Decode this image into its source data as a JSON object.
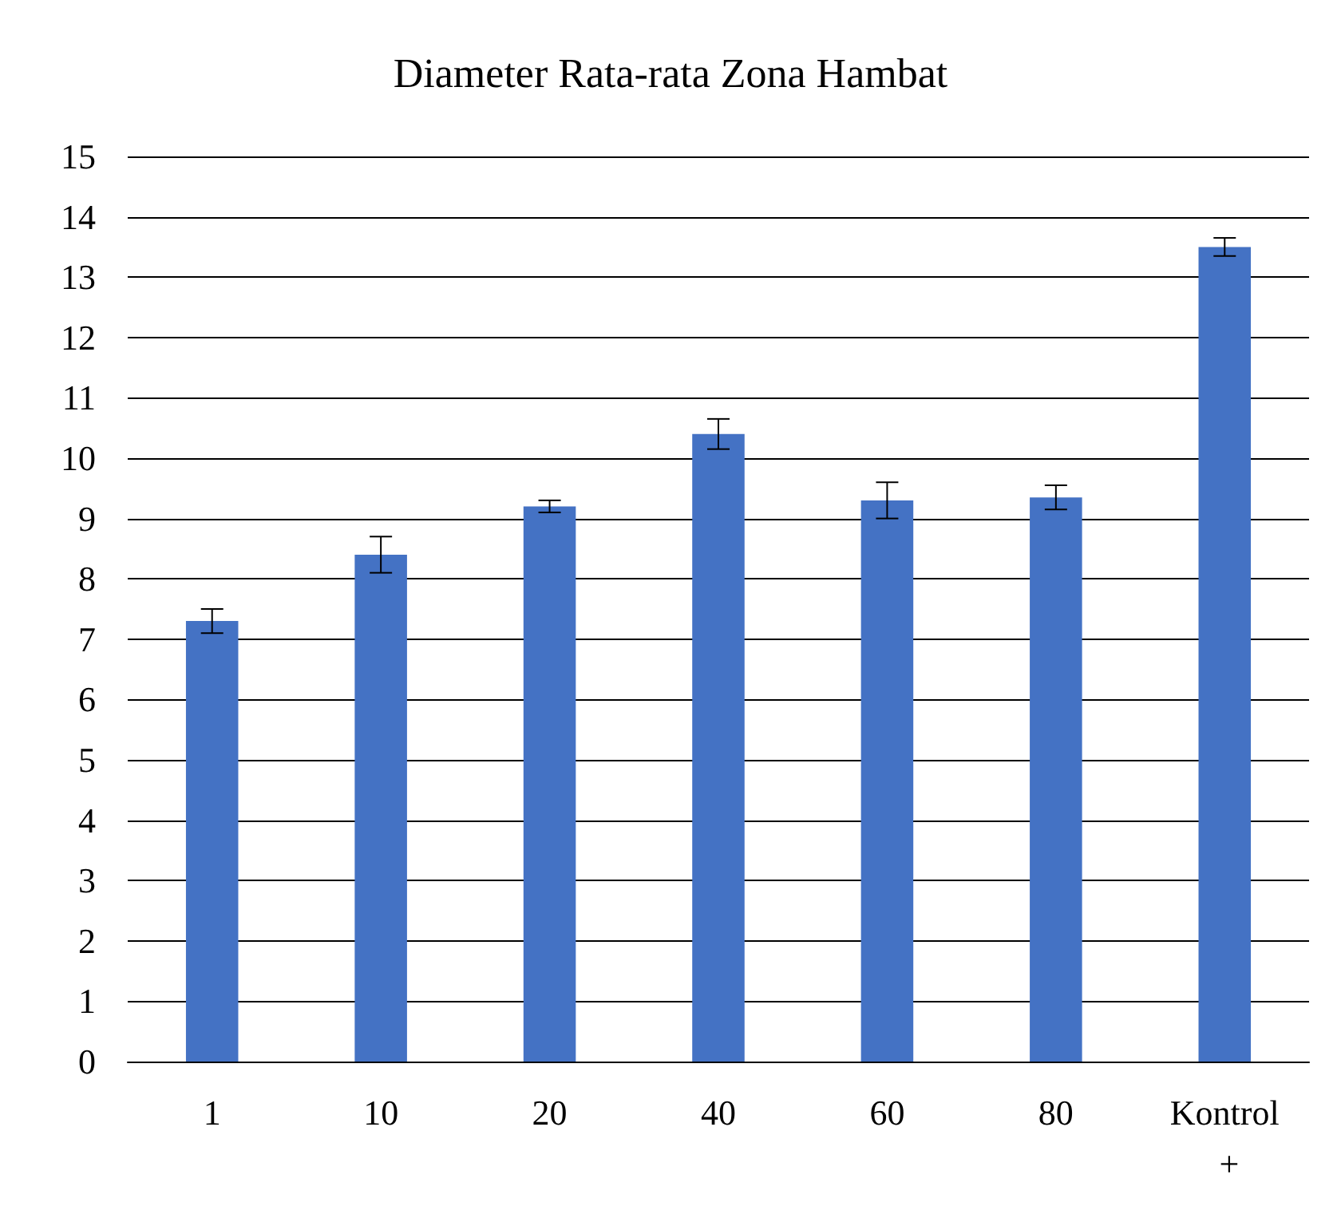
{
  "chart_data": {
    "type": "bar",
    "title": "Diameter Rata-rata Zona Hambat",
    "categories": [
      "1",
      "10",
      "20",
      "40",
      "60",
      "80",
      "Kontrol +"
    ],
    "values": [
      7.3,
      8.4,
      9.2,
      10.4,
      9.3,
      9.35,
      13.5
    ],
    "errors": [
      0.2,
      0.3,
      0.1,
      0.25,
      0.3,
      0.2,
      0.15
    ],
    "color": "#4472c4",
    "ylim": [
      0,
      15
    ],
    "yticks": [
      0,
      1,
      2,
      3,
      4,
      5,
      6,
      7,
      8,
      9,
      10,
      11,
      12,
      13,
      14,
      15
    ],
    "grid": "y"
  }
}
